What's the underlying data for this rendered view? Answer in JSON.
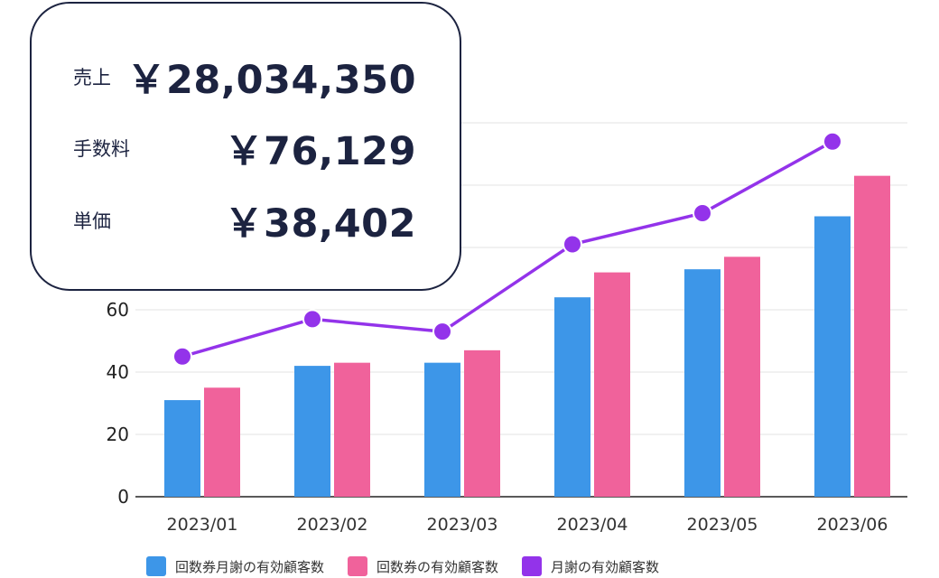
{
  "kpis": [
    {
      "label": "売上",
      "value": "￥28,034,350"
    },
    {
      "label": "手数料",
      "value": "￥76,129"
    },
    {
      "label": "単価",
      "value": "￥38,402"
    }
  ],
  "legend": [
    {
      "label": "回数券月謝の有効顧客数",
      "color": "#3d96e8"
    },
    {
      "label": "回数券の有効顧客数",
      "color": "#f0629b"
    },
    {
      "label": "月謝の有効顧客数",
      "color": "#9333ea"
    }
  ],
  "chart_data": {
    "type": "bar",
    "categories": [
      "2023/01",
      "2023/02",
      "2023/03",
      "2023/04",
      "2023/05",
      "2023/06"
    ],
    "series": [
      {
        "name": "回数券月謝の有効顧客数",
        "type": "bar",
        "color": "#3d96e8",
        "values": [
          31,
          42,
          43,
          64,
          73,
          90
        ]
      },
      {
        "name": "回数券の有効顧客数",
        "type": "bar",
        "color": "#f0629b",
        "values": [
          35,
          43,
          47,
          72,
          77,
          103
        ]
      },
      {
        "name": "月謝の有効顧客数",
        "type": "line",
        "color": "#9333ea",
        "values": [
          45,
          57,
          53,
          81,
          91,
          114
        ]
      }
    ],
    "y_ticks": [
      0,
      20,
      40,
      60
    ],
    "ylim": [
      0,
      120
    ],
    "grid": true,
    "legend_position": "bottom"
  }
}
